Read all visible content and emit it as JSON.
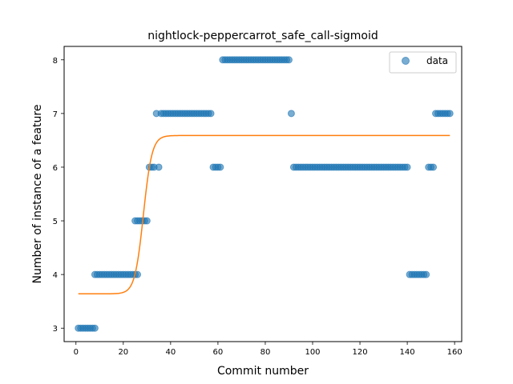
{
  "chart_data": {
    "type": "scatter",
    "title": "nightlock-peppercarrot_safe_call-sigmoid",
    "xlabel": "Commit number",
    "ylabel": "Number of instance of a feature",
    "xlim": [
      -5,
      163
    ],
    "ylim": [
      2.75,
      8.25
    ],
    "xticks": [
      0,
      20,
      40,
      60,
      80,
      100,
      120,
      140,
      160
    ],
    "yticks": [
      3,
      4,
      5,
      6,
      7,
      8
    ],
    "legend": {
      "position": "top-right",
      "entries": [
        "data"
      ]
    },
    "colors": {
      "data": "#1f77b4",
      "fit": "#ff7f0e"
    },
    "series": [
      {
        "name": "data",
        "kind": "scatter",
        "runs": [
          {
            "x_start": 1,
            "x_end": 8,
            "y": 3
          },
          {
            "x_start": 8,
            "x_end": 26,
            "y": 4
          },
          {
            "x_start": 25,
            "x_end": 30,
            "y": 5
          },
          {
            "x_start": 31,
            "x_end": 33,
            "y": 6
          },
          {
            "x_start": 34,
            "x_end": 34,
            "y": 7
          },
          {
            "x_start": 35,
            "x_end": 35,
            "y": 6
          },
          {
            "x_start": 36,
            "x_end": 57,
            "y": 7
          },
          {
            "x_start": 58,
            "x_end": 61,
            "y": 6
          },
          {
            "x_start": 62,
            "x_end": 90,
            "y": 8
          },
          {
            "x_start": 91,
            "x_end": 91,
            "y": 7
          },
          {
            "x_start": 92,
            "x_end": 140,
            "y": 6
          },
          {
            "x_start": 141,
            "x_end": 148,
            "y": 4
          },
          {
            "x_start": 149,
            "x_end": 151,
            "y": 6
          },
          {
            "x_start": 152,
            "x_end": 158,
            "y": 7
          }
        ]
      },
      {
        "name": "",
        "kind": "line",
        "model": "sigmoid",
        "params": {
          "L": 2.95,
          "x0": 28.5,
          "k": 0.55,
          "b": 3.64
        },
        "x_range": [
          1,
          158
        ]
      }
    ]
  }
}
